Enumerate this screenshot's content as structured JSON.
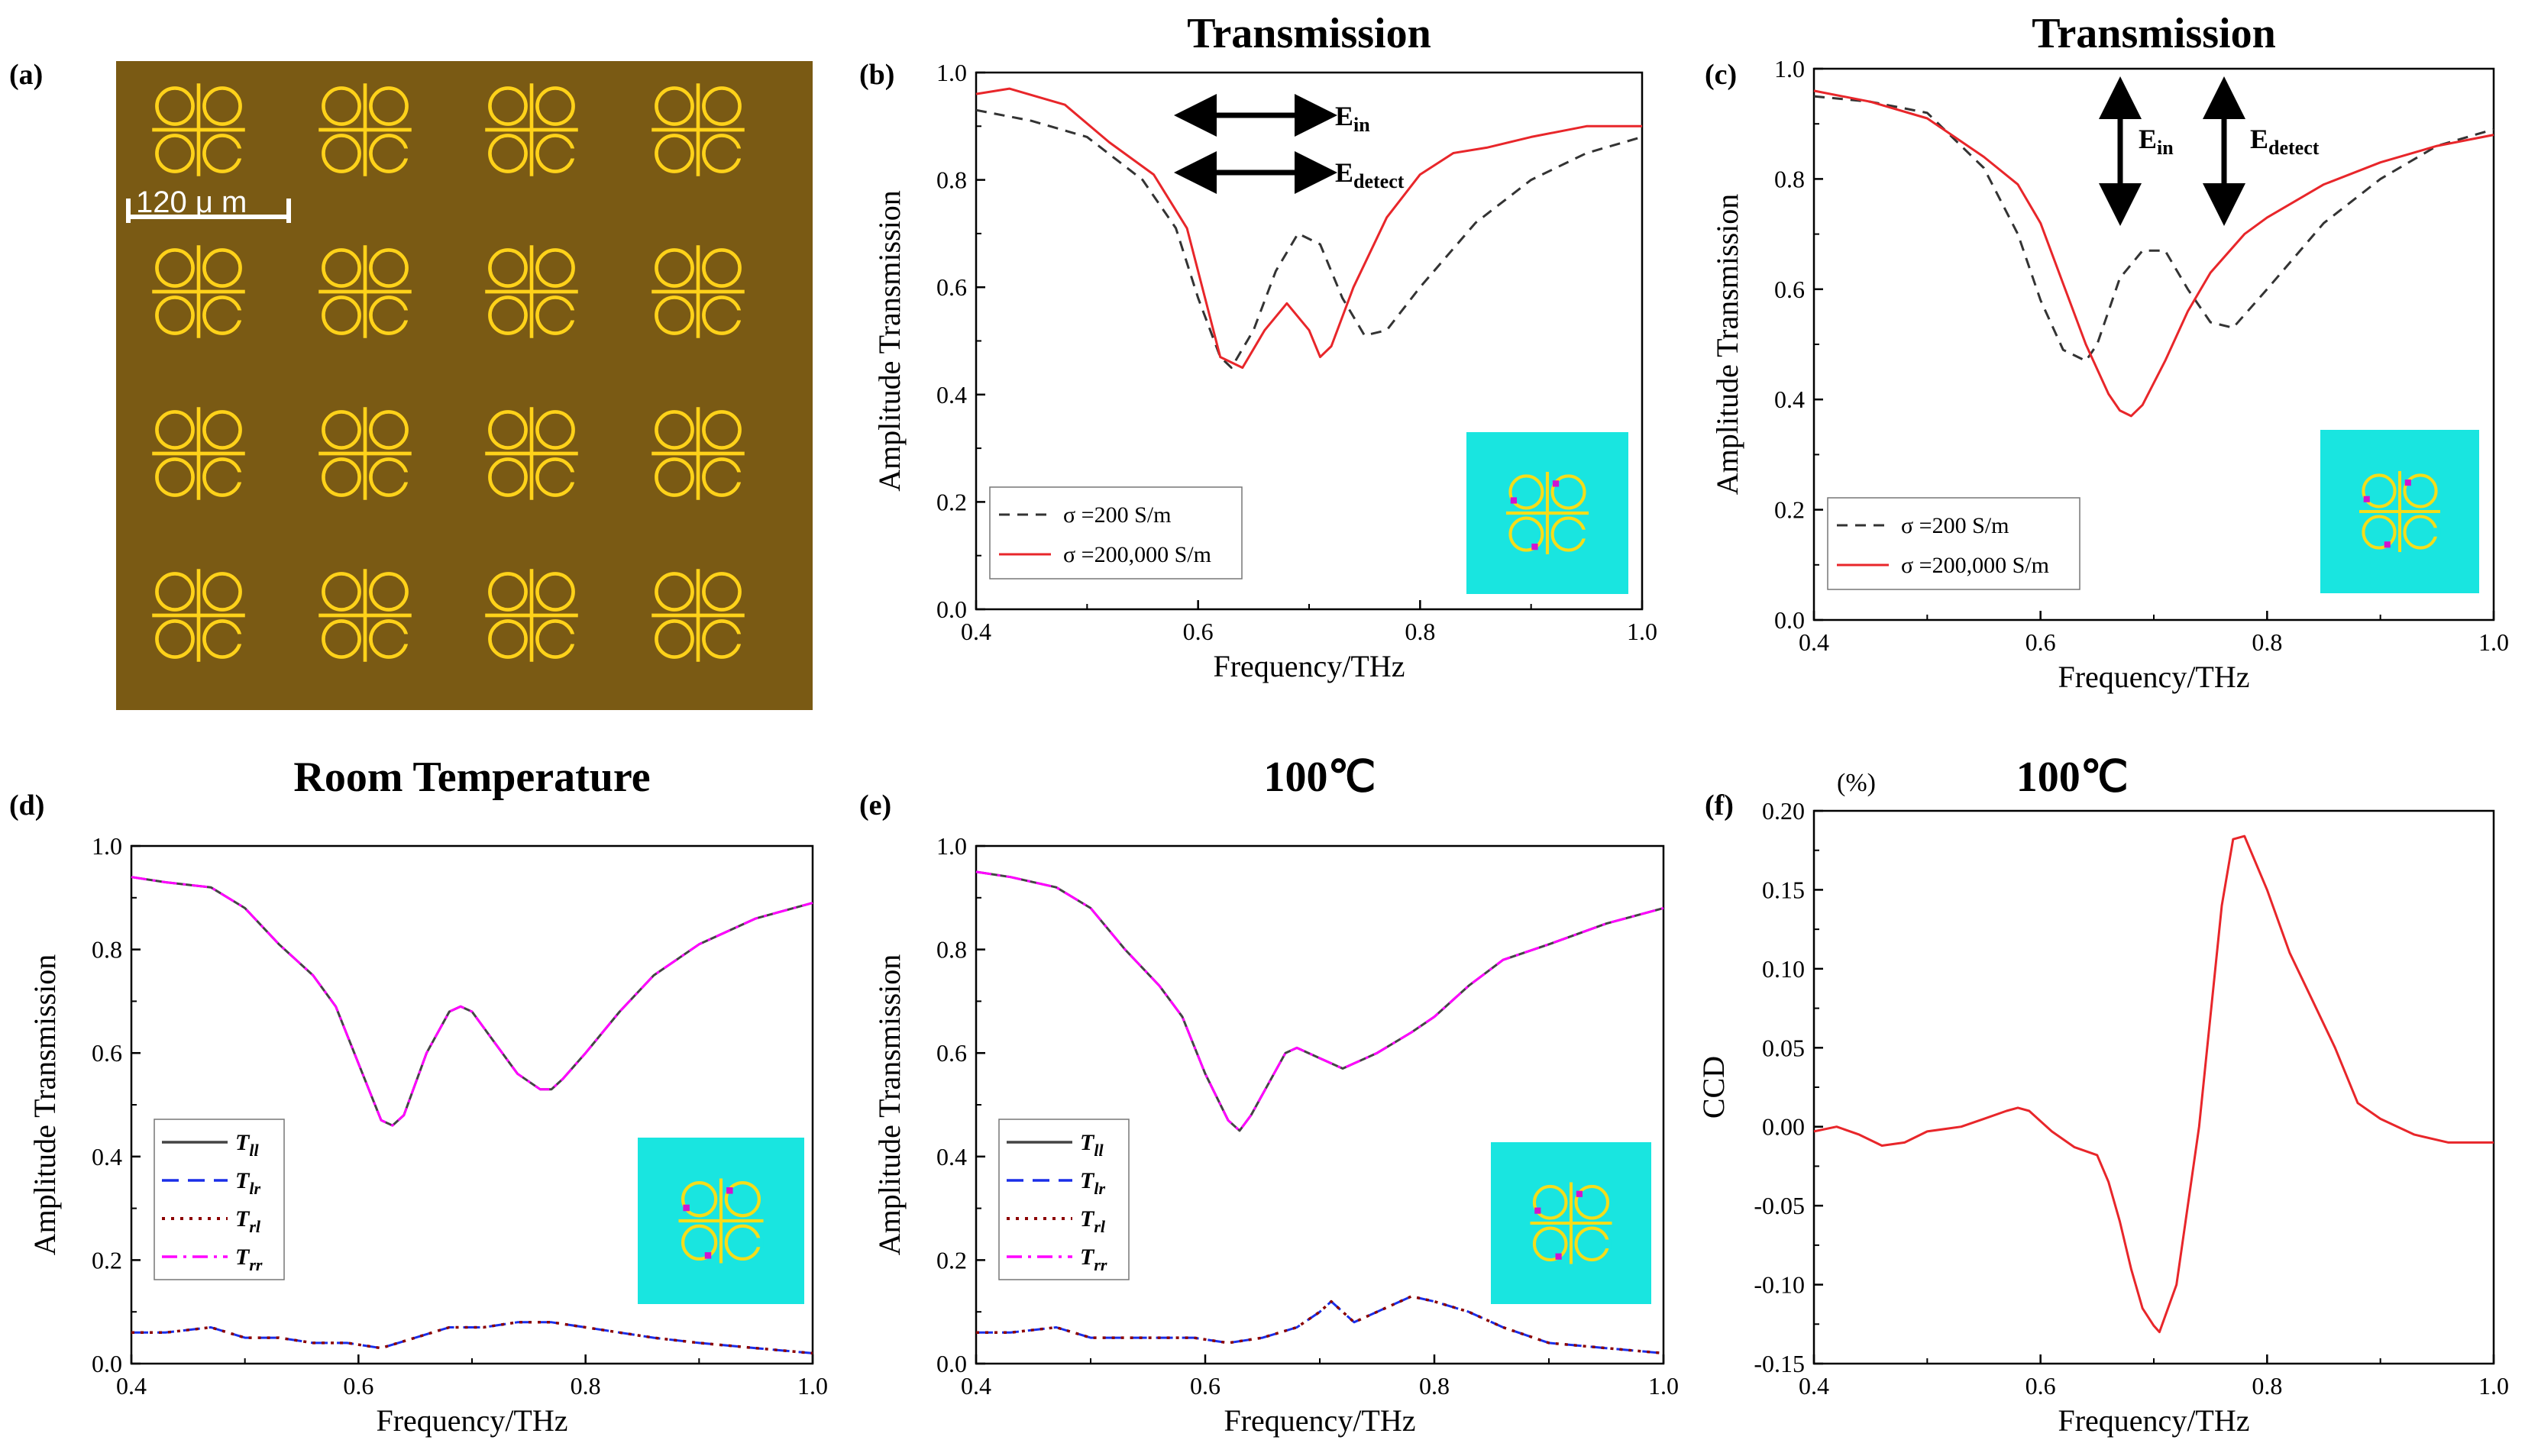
{
  "panel_a": {
    "letter": "(a)",
    "scale_label": "120 μ m",
    "colors": {
      "background": "#7a5a14",
      "pattern": "#ffd21a"
    },
    "grid_rows": 4,
    "grid_cols": 4
  },
  "chart_data": [
    {
      "id": "b",
      "letter": "(b)",
      "type": "line",
      "title": "Transmission",
      "xlabel": "Frequency/THz",
      "ylabel": "Amplitude Transmission",
      "xlim": [
        0.4,
        1.0
      ],
      "ylim": [
        0.0,
        1.0
      ],
      "xticks": [
        0.4,
        0.6,
        0.8,
        1.0
      ],
      "yticks": [
        0.0,
        0.2,
        0.4,
        0.6,
        0.8,
        1.0
      ],
      "tick_labels_x": [
        "0.4",
        "0.6",
        "0.8",
        "1.0"
      ],
      "tick_labels_y": [
        "0.0",
        "0.2",
        "0.4",
        "0.6",
        "0.8",
        "1.0"
      ],
      "legend_position": "bottom-left",
      "annotations": {
        "arrow_orientation": "horizontal",
        "e_in": "E",
        "e_in_sub": "in",
        "e_detect": "E",
        "e_detect_sub": "detect"
      },
      "series": [
        {
          "name": "σ =200 S/m",
          "color": "#333333",
          "style": "dash",
          "x": [
            0.4,
            0.45,
            0.5,
            0.55,
            0.58,
            0.6,
            0.62,
            0.63,
            0.65,
            0.67,
            0.69,
            0.71,
            0.73,
            0.75,
            0.77,
            0.8,
            0.85,
            0.9,
            0.95,
            1.0
          ],
          "y": [
            0.93,
            0.91,
            0.88,
            0.8,
            0.71,
            0.58,
            0.47,
            0.45,
            0.52,
            0.63,
            0.7,
            0.68,
            0.58,
            0.51,
            0.52,
            0.6,
            0.72,
            0.8,
            0.85,
            0.88
          ]
        },
        {
          "name": "σ =200,000 S/m",
          "color": "#e8262a",
          "style": "solid",
          "x": [
            0.4,
            0.43,
            0.48,
            0.52,
            0.56,
            0.59,
            0.61,
            0.62,
            0.64,
            0.66,
            0.68,
            0.7,
            0.71,
            0.72,
            0.74,
            0.77,
            0.8,
            0.83,
            0.86,
            0.9,
            0.95,
            1.0
          ],
          "y": [
            0.96,
            0.97,
            0.94,
            0.87,
            0.81,
            0.71,
            0.55,
            0.47,
            0.45,
            0.52,
            0.57,
            0.52,
            0.47,
            0.49,
            0.6,
            0.73,
            0.81,
            0.85,
            0.86,
            0.88,
            0.9,
            0.9
          ]
        }
      ]
    },
    {
      "id": "c",
      "letter": "(c)",
      "type": "line",
      "title": "Transmission",
      "xlabel": "Frequency/THz",
      "ylabel": "Amplitude Transmission",
      "xlim": [
        0.4,
        1.0
      ],
      "ylim": [
        0.0,
        1.0
      ],
      "xticks": [
        0.4,
        0.6,
        0.8,
        1.0
      ],
      "yticks": [
        0.0,
        0.2,
        0.4,
        0.6,
        0.8,
        1.0
      ],
      "tick_labels_x": [
        "0.4",
        "0.6",
        "0.8",
        "1.0"
      ],
      "tick_labels_y": [
        "0.0",
        "0.2",
        "0.4",
        "0.6",
        "0.8",
        "1.0"
      ],
      "legend_position": "bottom-left",
      "annotations": {
        "arrow_orientation": "vertical",
        "e_in": "E",
        "e_in_sub": "in",
        "e_detect": "E",
        "e_detect_sub": "detect"
      },
      "series": [
        {
          "name": "σ =200 S/m",
          "color": "#333333",
          "style": "dash",
          "x": [
            0.4,
            0.45,
            0.5,
            0.55,
            0.58,
            0.6,
            0.62,
            0.64,
            0.65,
            0.67,
            0.69,
            0.71,
            0.73,
            0.75,
            0.77,
            0.8,
            0.85,
            0.9,
            0.95,
            1.0
          ],
          "y": [
            0.95,
            0.94,
            0.92,
            0.82,
            0.7,
            0.58,
            0.49,
            0.47,
            0.5,
            0.62,
            0.67,
            0.67,
            0.6,
            0.54,
            0.53,
            0.6,
            0.72,
            0.8,
            0.86,
            0.89
          ]
        },
        {
          "name": "σ =200,000 S/m",
          "color": "#e8262a",
          "style": "solid",
          "x": [
            0.4,
            0.45,
            0.5,
            0.55,
            0.58,
            0.6,
            0.62,
            0.64,
            0.66,
            0.67,
            0.68,
            0.69,
            0.71,
            0.73,
            0.75,
            0.78,
            0.8,
            0.85,
            0.9,
            0.95,
            1.0
          ],
          "y": [
            0.96,
            0.94,
            0.91,
            0.84,
            0.79,
            0.72,
            0.61,
            0.5,
            0.41,
            0.38,
            0.37,
            0.39,
            0.47,
            0.56,
            0.63,
            0.7,
            0.73,
            0.79,
            0.83,
            0.86,
            0.88
          ]
        }
      ]
    },
    {
      "id": "d",
      "letter": "(d)",
      "type": "line",
      "title": "Room  Temperature",
      "xlabel": "Frequency/THz",
      "ylabel": "Amplitude Transmission",
      "xlim": [
        0.4,
        1.0
      ],
      "ylim": [
        0.0,
        1.0
      ],
      "xticks": [
        0.4,
        0.6,
        0.8,
        1.0
      ],
      "yticks": [
        0.0,
        0.2,
        0.4,
        0.6,
        0.8,
        1.0
      ],
      "tick_labels_x": [
        "0.4",
        "0.6",
        "0.8",
        "1.0"
      ],
      "tick_labels_y": [
        "0.0",
        "0.2",
        "0.4",
        "0.6",
        "0.8",
        "1.0"
      ],
      "legend_position": "middle-left",
      "series": [
        {
          "name": "T",
          "sub": "ll",
          "color": "#444444",
          "style": "solid",
          "x": [
            0.4,
            0.43,
            0.47,
            0.5,
            0.53,
            0.56,
            0.58,
            0.6,
            0.62,
            0.63,
            0.64,
            0.66,
            0.68,
            0.69,
            0.7,
            0.72,
            0.74,
            0.76,
            0.77,
            0.78,
            0.8,
            0.83,
            0.86,
            0.9,
            0.95,
            1.0
          ],
          "y": [
            0.94,
            0.93,
            0.92,
            0.88,
            0.81,
            0.75,
            0.69,
            0.58,
            0.47,
            0.46,
            0.48,
            0.6,
            0.68,
            0.69,
            0.68,
            0.62,
            0.56,
            0.53,
            0.53,
            0.55,
            0.6,
            0.68,
            0.75,
            0.81,
            0.86,
            0.89
          ]
        },
        {
          "name": "T",
          "sub": "lr",
          "color": "#1a2ee8",
          "style": "longdash",
          "x": [
            0.4,
            0.43,
            0.47,
            0.5,
            0.53,
            0.56,
            0.59,
            0.62,
            0.65,
            0.68,
            0.71,
            0.74,
            0.77,
            0.8,
            0.83,
            0.86,
            0.9,
            0.95,
            1.0
          ],
          "y": [
            0.06,
            0.06,
            0.07,
            0.05,
            0.05,
            0.04,
            0.04,
            0.03,
            0.05,
            0.07,
            0.07,
            0.08,
            0.08,
            0.07,
            0.06,
            0.05,
            0.04,
            0.03,
            0.02
          ]
        },
        {
          "name": "T",
          "sub": "rl",
          "color": "#8b0000",
          "style": "dot",
          "x": [
            0.4,
            0.43,
            0.47,
            0.5,
            0.53,
            0.56,
            0.59,
            0.62,
            0.65,
            0.68,
            0.71,
            0.74,
            0.77,
            0.8,
            0.83,
            0.86,
            0.9,
            0.95,
            1.0
          ],
          "y": [
            0.06,
            0.06,
            0.07,
            0.05,
            0.05,
            0.04,
            0.04,
            0.03,
            0.05,
            0.07,
            0.07,
            0.08,
            0.08,
            0.07,
            0.06,
            0.05,
            0.04,
            0.03,
            0.02
          ]
        },
        {
          "name": "T",
          "sub": "rr",
          "color": "#ff00ff",
          "style": "dashdot",
          "x": [
            0.4,
            0.43,
            0.47,
            0.5,
            0.53,
            0.56,
            0.58,
            0.6,
            0.62,
            0.63,
            0.64,
            0.66,
            0.68,
            0.69,
            0.7,
            0.72,
            0.74,
            0.76,
            0.77,
            0.78,
            0.8,
            0.83,
            0.86,
            0.9,
            0.95,
            1.0
          ],
          "y": [
            0.94,
            0.93,
            0.92,
            0.88,
            0.81,
            0.75,
            0.69,
            0.58,
            0.47,
            0.46,
            0.48,
            0.6,
            0.68,
            0.69,
            0.68,
            0.62,
            0.56,
            0.53,
            0.53,
            0.55,
            0.6,
            0.68,
            0.75,
            0.81,
            0.86,
            0.89
          ]
        }
      ]
    },
    {
      "id": "e",
      "letter": "(e)",
      "type": "line",
      "title": "100℃",
      "xlabel": "Frequency/THz",
      "ylabel": "Amplitude Transmission",
      "xlim": [
        0.4,
        1.0
      ],
      "ylim": [
        0.0,
        1.0
      ],
      "xticks": [
        0.4,
        0.6,
        0.8,
        1.0
      ],
      "yticks": [
        0.0,
        0.2,
        0.4,
        0.6,
        0.8,
        1.0
      ],
      "tick_labels_x": [
        "0.4",
        "0.6",
        "0.8",
        "1.0"
      ],
      "tick_labels_y": [
        "0.0",
        "0.2",
        "0.4",
        "0.6",
        "0.8",
        "1.0"
      ],
      "legend_position": "middle-left",
      "series": [
        {
          "name": "T",
          "sub": "ll",
          "color": "#444444",
          "style": "solid",
          "x": [
            0.4,
            0.43,
            0.47,
            0.5,
            0.53,
            0.56,
            0.58,
            0.6,
            0.62,
            0.63,
            0.64,
            0.66,
            0.67,
            0.68,
            0.7,
            0.72,
            0.75,
            0.78,
            0.8,
            0.83,
            0.86,
            0.9,
            0.95,
            1.0
          ],
          "y": [
            0.95,
            0.94,
            0.92,
            0.88,
            0.8,
            0.73,
            0.67,
            0.56,
            0.47,
            0.45,
            0.48,
            0.56,
            0.6,
            0.61,
            0.59,
            0.57,
            0.6,
            0.64,
            0.67,
            0.73,
            0.78,
            0.81,
            0.85,
            0.88
          ]
        },
        {
          "name": "T",
          "sub": "lr",
          "color": "#1a2ee8",
          "style": "longdash",
          "x": [
            0.4,
            0.43,
            0.47,
            0.5,
            0.53,
            0.56,
            0.59,
            0.62,
            0.65,
            0.68,
            0.7,
            0.71,
            0.72,
            0.73,
            0.74,
            0.76,
            0.78,
            0.8,
            0.83,
            0.86,
            0.9,
            0.95,
            1.0
          ],
          "y": [
            0.06,
            0.06,
            0.07,
            0.05,
            0.05,
            0.05,
            0.05,
            0.04,
            0.05,
            0.07,
            0.1,
            0.12,
            0.1,
            0.08,
            0.09,
            0.11,
            0.13,
            0.12,
            0.1,
            0.07,
            0.04,
            0.03,
            0.02
          ]
        },
        {
          "name": "T",
          "sub": "rl",
          "color": "#8b0000",
          "style": "dot",
          "x": [
            0.4,
            0.43,
            0.47,
            0.5,
            0.53,
            0.56,
            0.59,
            0.62,
            0.65,
            0.68,
            0.7,
            0.71,
            0.72,
            0.73,
            0.74,
            0.76,
            0.78,
            0.8,
            0.83,
            0.86,
            0.9,
            0.95,
            1.0
          ],
          "y": [
            0.06,
            0.06,
            0.07,
            0.05,
            0.05,
            0.05,
            0.05,
            0.04,
            0.05,
            0.07,
            0.1,
            0.12,
            0.1,
            0.08,
            0.09,
            0.11,
            0.13,
            0.12,
            0.1,
            0.07,
            0.04,
            0.03,
            0.02
          ]
        },
        {
          "name": "T",
          "sub": "rr",
          "color": "#ff00ff",
          "style": "dashdot",
          "x": [
            0.4,
            0.43,
            0.47,
            0.5,
            0.53,
            0.56,
            0.58,
            0.6,
            0.62,
            0.63,
            0.64,
            0.66,
            0.67,
            0.68,
            0.7,
            0.72,
            0.75,
            0.78,
            0.8,
            0.83,
            0.86,
            0.9,
            0.95,
            1.0
          ],
          "y": [
            0.95,
            0.94,
            0.92,
            0.88,
            0.8,
            0.73,
            0.67,
            0.56,
            0.47,
            0.45,
            0.48,
            0.56,
            0.6,
            0.61,
            0.59,
            0.57,
            0.6,
            0.64,
            0.67,
            0.73,
            0.78,
            0.81,
            0.85,
            0.88
          ]
        }
      ]
    },
    {
      "id": "f",
      "letter": "(f)",
      "type": "line",
      "title": "100℃",
      "unit_label": "(%)",
      "xlabel": "Frequency/THz",
      "ylabel": "CCD",
      "xlim": [
        0.4,
        1.0
      ],
      "ylim": [
        -0.15,
        0.2
      ],
      "xticks": [
        0.4,
        0.6,
        0.8,
        1.0
      ],
      "yticks": [
        -0.15,
        -0.1,
        -0.05,
        0.0,
        0.05,
        0.1,
        0.15,
        0.2
      ],
      "tick_labels_x": [
        "0.4",
        "0.6",
        "0.8",
        "1.0"
      ],
      "tick_labels_y": [
        "-0.15",
        "-0.10",
        "-0.05",
        "0.00",
        "0.05",
        "0.10",
        "0.15",
        "0.20"
      ],
      "legend_position": "none",
      "series": [
        {
          "name": "CCD",
          "color": "#e8262a",
          "style": "solid",
          "x": [
            0.4,
            0.42,
            0.44,
            0.46,
            0.48,
            0.5,
            0.53,
            0.55,
            0.57,
            0.58,
            0.59,
            0.61,
            0.63,
            0.65,
            0.66,
            0.67,
            0.68,
            0.69,
            0.7,
            0.705,
            0.72,
            0.74,
            0.76,
            0.77,
            0.78,
            0.8,
            0.82,
            0.84,
            0.86,
            0.88,
            0.9,
            0.93,
            0.96,
            1.0
          ],
          "y": [
            -0.003,
            0.0,
            -0.005,
            -0.012,
            -0.01,
            -0.003,
            0.0,
            0.005,
            0.01,
            0.012,
            0.01,
            -0.003,
            -0.013,
            -0.018,
            -0.035,
            -0.06,
            -0.09,
            -0.115,
            -0.126,
            -0.13,
            -0.1,
            0.0,
            0.14,
            0.182,
            0.184,
            0.15,
            0.11,
            0.08,
            0.05,
            0.015,
            0.005,
            -0.005,
            -0.01,
            -0.01
          ]
        }
      ]
    }
  ]
}
